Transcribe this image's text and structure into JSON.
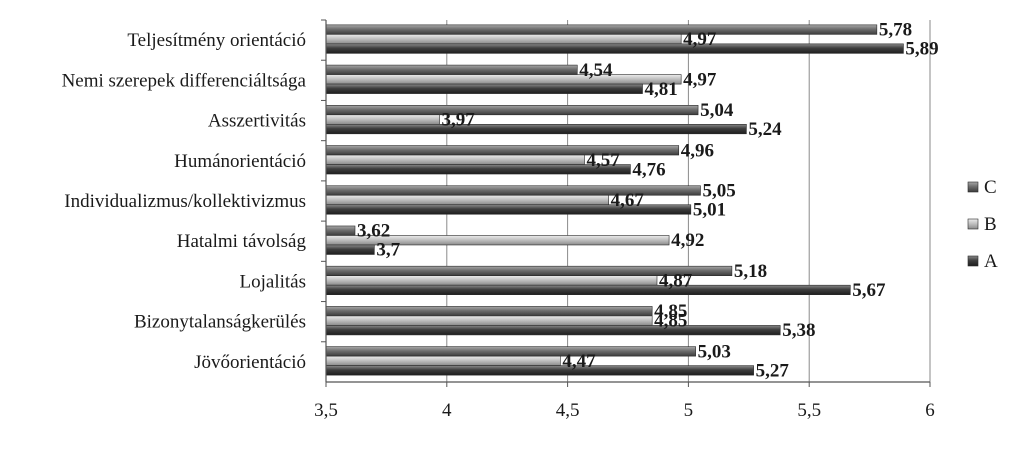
{
  "chart_data": {
    "type": "bar",
    "orientation": "horizontal",
    "title": "",
    "xlabel": "",
    "ylabel": "",
    "xlim": [
      3.5,
      6
    ],
    "x_ticks": [
      3.5,
      4,
      4.5,
      5,
      5.5,
      6
    ],
    "x_tick_labels": [
      "3,5",
      "4",
      "4,5",
      "5",
      "5,5",
      "6"
    ],
    "grid": "vertical",
    "legend_position": "right",
    "categories": [
      "Teljesítmény orientáció",
      "Nemi szerepek differenciáltsága",
      "Asszertivitás",
      "Humánorientáció",
      "Individualizmus/kollektivizmus",
      "Hatalmi távolság",
      "Lojalitás",
      "Bizonytalanságkerülés",
      "Jövőorientáció"
    ],
    "series": [
      {
        "name": "C",
        "color": "#6e6e6e",
        "values": [
          5.78,
          4.54,
          5.04,
          4.96,
          5.05,
          3.62,
          5.18,
          4.85,
          5.03
        ],
        "labels": [
          "5,78",
          "4,54",
          "5,04",
          "4,96",
          "5,05",
          "3,62",
          "5,18",
          "4,85",
          "5,03"
        ]
      },
      {
        "name": "B",
        "color": "#bdbdbd",
        "values": [
          4.97,
          4.97,
          3.97,
          4.57,
          4.67,
          4.92,
          4.87,
          4.85,
          4.47
        ],
        "labels": [
          "4,97",
          "4,97",
          "3,97",
          "4,57",
          "4,67",
          "4,92",
          "4,87",
          "4,85",
          "4,47"
        ]
      },
      {
        "name": "A",
        "color": "#3e3e3e",
        "values": [
          5.89,
          4.81,
          5.24,
          4.76,
          5.01,
          3.7,
          5.67,
          5.38,
          5.27
        ],
        "labels": [
          "5,89",
          "4,81",
          "5,24",
          "4,76",
          "5,01",
          "3,7",
          "5,67",
          "5,38",
          "5,27"
        ]
      }
    ],
    "legend": [
      "C",
      "B",
      "A"
    ]
  }
}
